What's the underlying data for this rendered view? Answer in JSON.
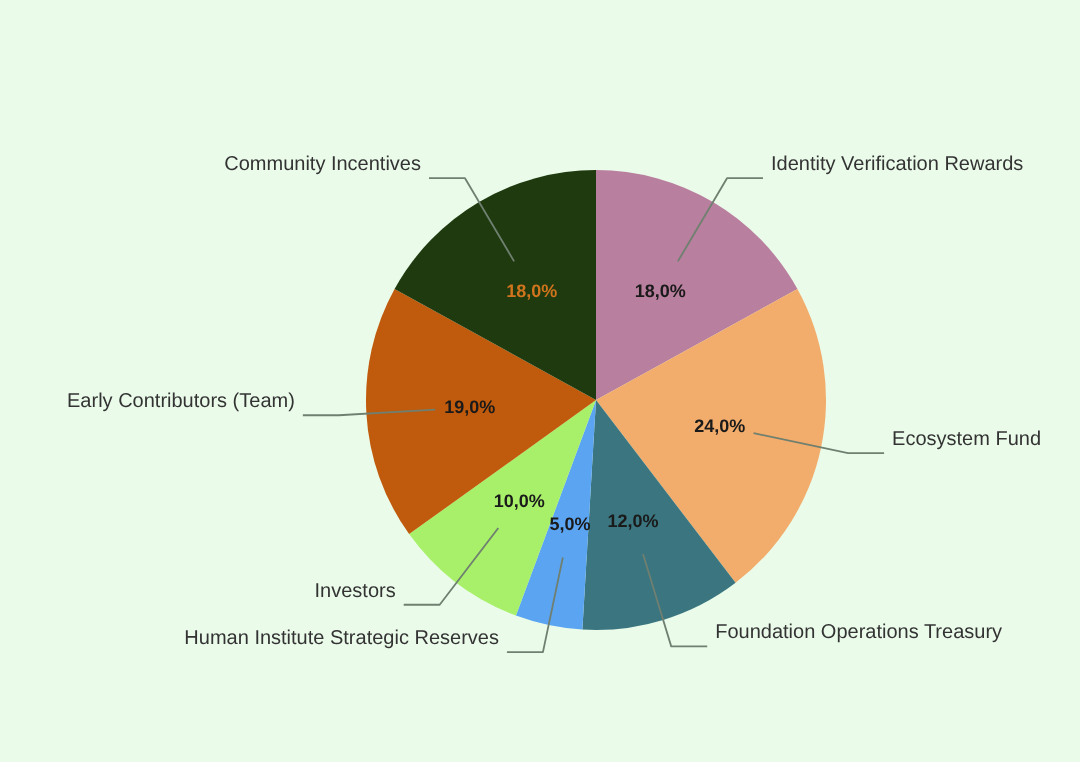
{
  "chart_data": {
    "type": "pie",
    "categories": [
      "Identity Verification Rewards",
      "Ecosystem Fund",
      "Foundation Operations Treasury",
      "Human Institute Strategic Reserves",
      "Investors",
      "Early Contributors (Team)",
      "Community Incentives"
    ],
    "values": [
      18.0,
      24.0,
      12.0,
      5.0,
      10.0,
      19.0,
      18.0
    ],
    "colors": [
      "#b97f9e",
      "#f2ac6b",
      "#3a7580",
      "#5ba4f2",
      "#a8f06a",
      "#c05a0c",
      "#1e3a0e"
    ],
    "value_labels": [
      "18,0%",
      "24,0%",
      "12,0%",
      "5,0%",
      "10,0%",
      "19,0%",
      "18,0%"
    ]
  }
}
